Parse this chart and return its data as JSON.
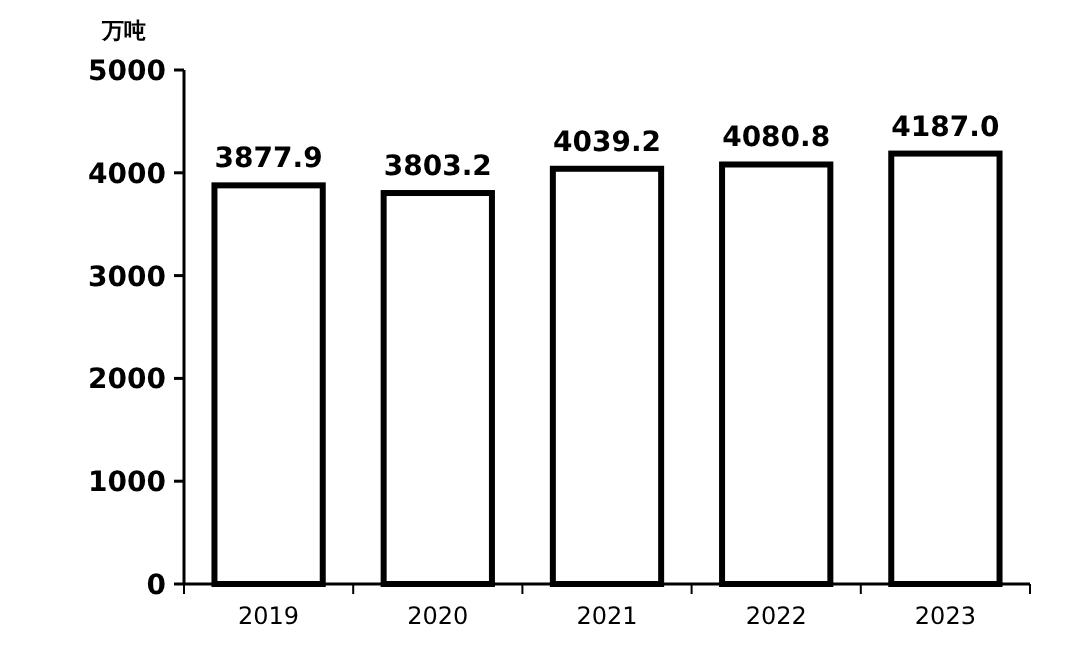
{
  "chart_data": {
    "type": "bar",
    "ylabel": "万吨",
    "categories": [
      "2019",
      "2020",
      "2021",
      "2022",
      "2023"
    ],
    "values": [
      3877.9,
      3803.2,
      4039.2,
      4080.8,
      4187.0
    ],
    "value_labels": [
      "3877.9",
      "3803.2",
      "4039.2",
      "4080.8",
      "4187.0"
    ],
    "color": "#ffffff",
    "ylim": [
      0,
      5000
    ],
    "yticks": [
      0,
      1000,
      2000,
      3000,
      4000,
      5000
    ],
    "grid": false
  }
}
